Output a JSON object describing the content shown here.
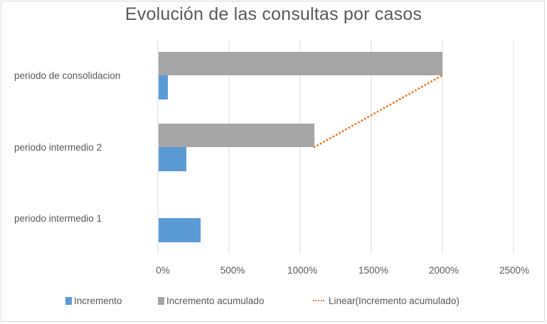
{
  "chart_data": {
    "type": "bar",
    "orientation": "horizontal",
    "title": "Evolución de las consultas por casos",
    "xlabel": "",
    "ylabel": "",
    "categories": [
      "periodo intermedio 1",
      "periodo intermedio 2",
      "periodo de consolidacion"
    ],
    "series": [
      {
        "name": "Incremento",
        "color": "#5b9bd5",
        "values": [
          300,
          200,
          70
        ]
      },
      {
        "name": "Incremento acumulado",
        "color": "#a5a5a5",
        "values": [
          0,
          1100,
          2000
        ]
      }
    ],
    "trendline": {
      "name": "Linear(Incremento acumulado)",
      "type": "linear",
      "series": "Incremento acumulado",
      "color": "#ed7d31",
      "style": "dotted"
    },
    "xlim": [
      0,
      2500
    ],
    "x_ticks": [
      "0%",
      "500%",
      "1000%",
      "1500%",
      "2000%",
      "2500%"
    ],
    "value_format": "percent",
    "grid": "vertical",
    "legend_position": "bottom"
  },
  "title": "Evolución de las consultas por casos",
  "categories": {
    "consolidacion": "periodo de consolidacion",
    "intermedio2": "periodo intermedio 2",
    "intermedio1": "periodo intermedio 1"
  },
  "axis": {
    "ticks": [
      "0%",
      "500%",
      "1000%",
      "1500%",
      "2000%",
      "2500%"
    ]
  },
  "legend": {
    "items": [
      {
        "label": "Incremento",
        "color": "#5b9bd5"
      },
      {
        "label": "Incremento acumulado",
        "color": "#a5a5a5"
      },
      {
        "label": "Linear(Incremento acumulado)",
        "color": "#ed7d31"
      }
    ]
  },
  "colors": {
    "incremento": "#5b9bd5",
    "acumulado": "#a5a5a5",
    "trend": "#ed7d31",
    "grid": "#d9d9d9",
    "text": "#595959"
  }
}
